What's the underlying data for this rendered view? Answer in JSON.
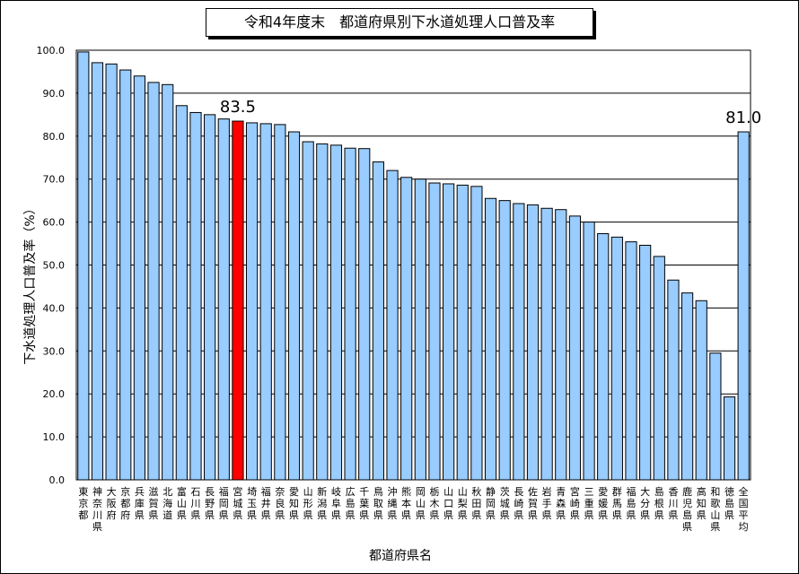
{
  "chart_data": {
    "type": "bar",
    "title": "令和4年度末　都道府県別下水道処理人口普及率",
    "xlabel": "都道府県名",
    "ylabel": "下水道処理人口普及率（%）",
    "ylim": [
      0,
      100
    ],
    "yticks": [
      "0.0",
      "10.0",
      "20.0",
      "30.0",
      "40.0",
      "50.0",
      "60.0",
      "70.0",
      "80.0",
      "90.0",
      "100.0"
    ],
    "grid": true,
    "legend": "none",
    "colors": {
      "bar": "#99CCFF",
      "highlight": "#FF0000",
      "edge": "#000000"
    },
    "categories": [
      "東京都",
      "神奈川県",
      "大阪府",
      "京都府",
      "兵庫県",
      "滋賀県",
      "北海道",
      "富山県",
      "石川県",
      "長野県",
      "福岡県",
      "宮城県",
      "埼玉県",
      "福井県",
      "奈良県",
      "愛知県",
      "山形県",
      "新潟県",
      "岐阜県",
      "広島県",
      "千葉県",
      "鳥取県",
      "沖縄県",
      "熊本県",
      "岡山県",
      "栃木県",
      "山口県",
      "山梨県",
      "秋田県",
      "静岡県",
      "茨城県",
      "長崎県",
      "佐賀県",
      "岩手県",
      "青森県",
      "宮崎県",
      "三重県",
      "愛媛県",
      "群馬県",
      "福島県",
      "大分県",
      "島根県",
      "香川県",
      "鹿児島県",
      "高知県",
      "和歌山県",
      "徳島県",
      "全国平均"
    ],
    "values": [
      99.6,
      97.1,
      96.8,
      95.4,
      94.0,
      92.5,
      92.0,
      87.1,
      85.5,
      85.0,
      84.0,
      83.5,
      83.1,
      82.9,
      82.7,
      81.0,
      78.7,
      78.2,
      77.9,
      77.2,
      77.1,
      74.0,
      72.0,
      70.4,
      70.0,
      69.1,
      68.9,
      68.6,
      68.3,
      65.5,
      65.0,
      64.3,
      64.0,
      63.2,
      62.9,
      61.4,
      60.0,
      57.3,
      56.5,
      55.4,
      54.6,
      52.0,
      46.5,
      43.5,
      41.7,
      29.5,
      19.3,
      81.0
    ],
    "highlight_index": 11,
    "data_labels": [
      {
        "index": 11,
        "text": "83.5"
      },
      {
        "index": 47,
        "text": "81.0"
      }
    ]
  }
}
